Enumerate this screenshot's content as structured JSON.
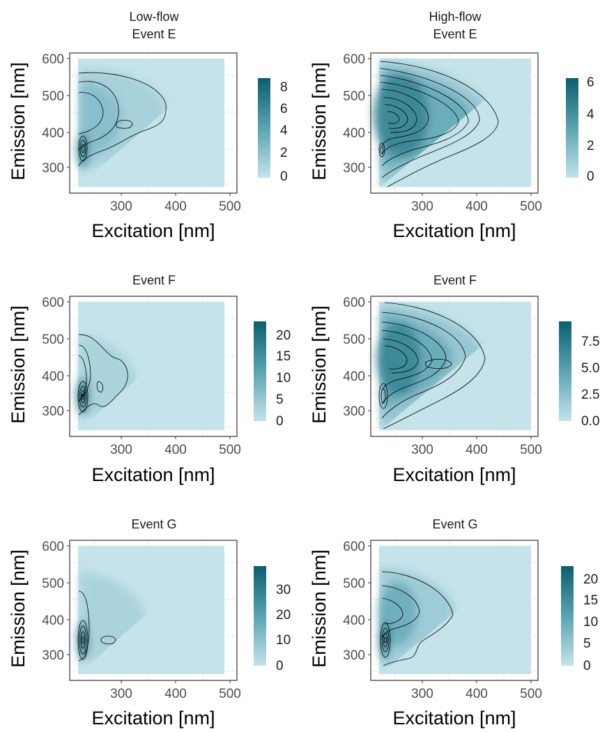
{
  "figure": {
    "colors": {
      "low": "#c4e3ea",
      "high": "#0a5f6e",
      "contour": "#000000",
      "panel_border": "#333333",
      "grid": "#ebebeb"
    }
  },
  "chart_data": [
    {
      "type": "heatmap",
      "title": "Low-flow",
      "subtitle": "Event E",
      "xlabel": "Excitation [nm]",
      "ylabel": "Emission [nm]",
      "xlim": [
        210,
        510
      ],
      "ylim": [
        235,
        615
      ],
      "x_ticks": [
        "300",
        "400",
        "500"
      ],
      "y_ticks": [
        "300",
        "400",
        "500",
        "600"
      ],
      "colorbar_ticks": [
        "0",
        "2",
        "4",
        "6",
        "8"
      ],
      "colorbar_range": [
        0,
        9
      ],
      "contour_levels": 7,
      "peaks": [
        {
          "x": 228,
          "y": 335,
          "value": 8.5
        },
        {
          "x": 235,
          "y": 420,
          "value": 4.0
        },
        {
          "x": 300,
          "y": 420,
          "value": 2.2
        }
      ],
      "grid": true,
      "legend": "colorbar right"
    },
    {
      "type": "heatmap",
      "title": "High-flow",
      "subtitle": "Event E",
      "xlabel": "Excitation [nm]",
      "ylabel": "Emission [nm]",
      "xlim": [
        210,
        510
      ],
      "ylim": [
        235,
        615
      ],
      "x_ticks": [
        "300",
        "400",
        "500"
      ],
      "y_ticks": [
        "300",
        "400",
        "500",
        "600"
      ],
      "colorbar_ticks": [
        "0",
        "2",
        "4",
        "6"
      ],
      "colorbar_range": [
        0,
        6.5
      ],
      "contour_levels": 11,
      "peaks": [
        {
          "x": 240,
          "y": 430,
          "value": 6.2
        },
        {
          "x": 320,
          "y": 420,
          "value": 3.4
        },
        {
          "x": 225,
          "y": 335,
          "value": 4.5
        }
      ],
      "grid": true,
      "legend": "colorbar right"
    },
    {
      "type": "heatmap",
      "title": "",
      "subtitle": "Event F",
      "xlabel": "Excitation [nm]",
      "ylabel": "Emission [nm]",
      "xlim": [
        210,
        510
      ],
      "ylim": [
        235,
        615
      ],
      "x_ticks": [
        "300",
        "400",
        "500"
      ],
      "y_ticks": [
        "300",
        "400",
        "500",
        "600"
      ],
      "colorbar_ticks": [
        "0",
        "5",
        "10",
        "15",
        "20"
      ],
      "colorbar_range": [
        0,
        23
      ],
      "contour_levels": 9,
      "peaks": [
        {
          "x": 228,
          "y": 335,
          "value": 22
        },
        {
          "x": 235,
          "y": 430,
          "value": 4.0
        },
        {
          "x": 275,
          "y": 340,
          "value": 3.0
        }
      ],
      "grid": true,
      "legend": "colorbar right"
    },
    {
      "type": "heatmap",
      "title": "",
      "subtitle": "Event F",
      "xlabel": "Excitation [nm]",
      "ylabel": "Emission [nm]",
      "xlim": [
        210,
        510
      ],
      "ylim": [
        235,
        615
      ],
      "x_ticks": [
        "300",
        "400",
        "500"
      ],
      "y_ticks": [
        "300",
        "400",
        "500",
        "600"
      ],
      "colorbar_ticks": [
        "0.0",
        "2.5",
        "5.0",
        "7.5"
      ],
      "colorbar_range": [
        0,
        9.5
      ],
      "contour_levels": 10,
      "peaks": [
        {
          "x": 240,
          "y": 440,
          "value": 7.5
        },
        {
          "x": 325,
          "y": 425,
          "value": 4.0
        },
        {
          "x": 228,
          "y": 335,
          "value": 7.0
        }
      ],
      "grid": true,
      "legend": "colorbar right"
    },
    {
      "type": "heatmap",
      "title": "",
      "subtitle": "Event G",
      "xlabel": "Excitation [nm]",
      "ylabel": "Emission [nm]",
      "xlim": [
        210,
        510
      ],
      "ylim": [
        235,
        615
      ],
      "x_ticks": [
        "300",
        "400",
        "500"
      ],
      "y_ticks": [
        "300",
        "400",
        "500",
        "600"
      ],
      "colorbar_ticks": [
        "0",
        "10",
        "20",
        "30"
      ],
      "colorbar_range": [
        0,
        40
      ],
      "contour_levels": 8,
      "peaks": [
        {
          "x": 228,
          "y": 335,
          "value": 38
        },
        {
          "x": 232,
          "y": 420,
          "value": 6.0
        },
        {
          "x": 275,
          "y": 340,
          "value": 5.0
        }
      ],
      "grid": true,
      "legend": "colorbar right"
    },
    {
      "type": "heatmap",
      "title": "",
      "subtitle": "Event G",
      "xlabel": "Excitation [nm]",
      "ylabel": "Emission [nm]",
      "xlim": [
        210,
        510
      ],
      "ylim": [
        235,
        615
      ],
      "x_ticks": [
        "300",
        "400",
        "500"
      ],
      "y_ticks": [
        "300",
        "400",
        "500",
        "600"
      ],
      "colorbar_ticks": [
        "0",
        "5",
        "10",
        "15",
        "20"
      ],
      "colorbar_range": [
        0,
        23
      ],
      "contour_levels": 9,
      "peaks": [
        {
          "x": 228,
          "y": 335,
          "value": 22
        },
        {
          "x": 240,
          "y": 430,
          "value": 5.0
        },
        {
          "x": 300,
          "y": 420,
          "value": 3.0
        }
      ],
      "grid": true,
      "legend": "colorbar right"
    }
  ]
}
